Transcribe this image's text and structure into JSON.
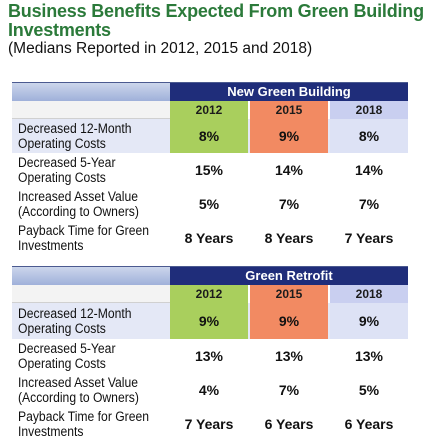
{
  "title": "Business Benefits Expected From Green Building Investments",
  "subtitle": "(Medians Reported in 2012, 2015 and 2018)",
  "colors": {
    "title_green": "#2b7a3a",
    "header_navy": "#1f2d7a",
    "year_2012": "#a9cf5d",
    "year_2015": "#f28a62",
    "year_2018": "#c9cff0"
  },
  "chart_data": [
    {
      "type": "table",
      "title": "New Green Building",
      "columns": [
        "2012",
        "2015",
        "2018"
      ],
      "rows": [
        {
          "label": "Decreased 12-Month Operating Costs",
          "values": [
            "8%",
            "9%",
            "8%"
          ]
        },
        {
          "label": "Decreased 5-Year Operating Costs",
          "values": [
            "15%",
            "14%",
            "14%"
          ]
        },
        {
          "label": "Increased Asset Value (According to Owners)",
          "values": [
            "5%",
            "7%",
            "7%"
          ]
        },
        {
          "label": "Payback Time for Green Investments",
          "values": [
            "8 Years",
            "8 Years",
            "7 Years"
          ]
        }
      ]
    },
    {
      "type": "table",
      "title": "Green Retrofit",
      "columns": [
        "2012",
        "2015",
        "2018"
      ],
      "rows": [
        {
          "label": "Decreased 12-Month Operating Costs",
          "values": [
            "9%",
            "9%",
            "9%"
          ]
        },
        {
          "label": "Decreased 5-Year Operating Costs",
          "values": [
            "13%",
            "13%",
            "13%"
          ]
        },
        {
          "label": "Increased Asset Value (According to Owners)",
          "values": [
            "4%",
            "7%",
            "5%"
          ]
        },
        {
          "label": "Payback Time for Green Investments",
          "values": [
            "7 Years",
            "6 Years",
            "6 Years"
          ]
        }
      ]
    }
  ]
}
